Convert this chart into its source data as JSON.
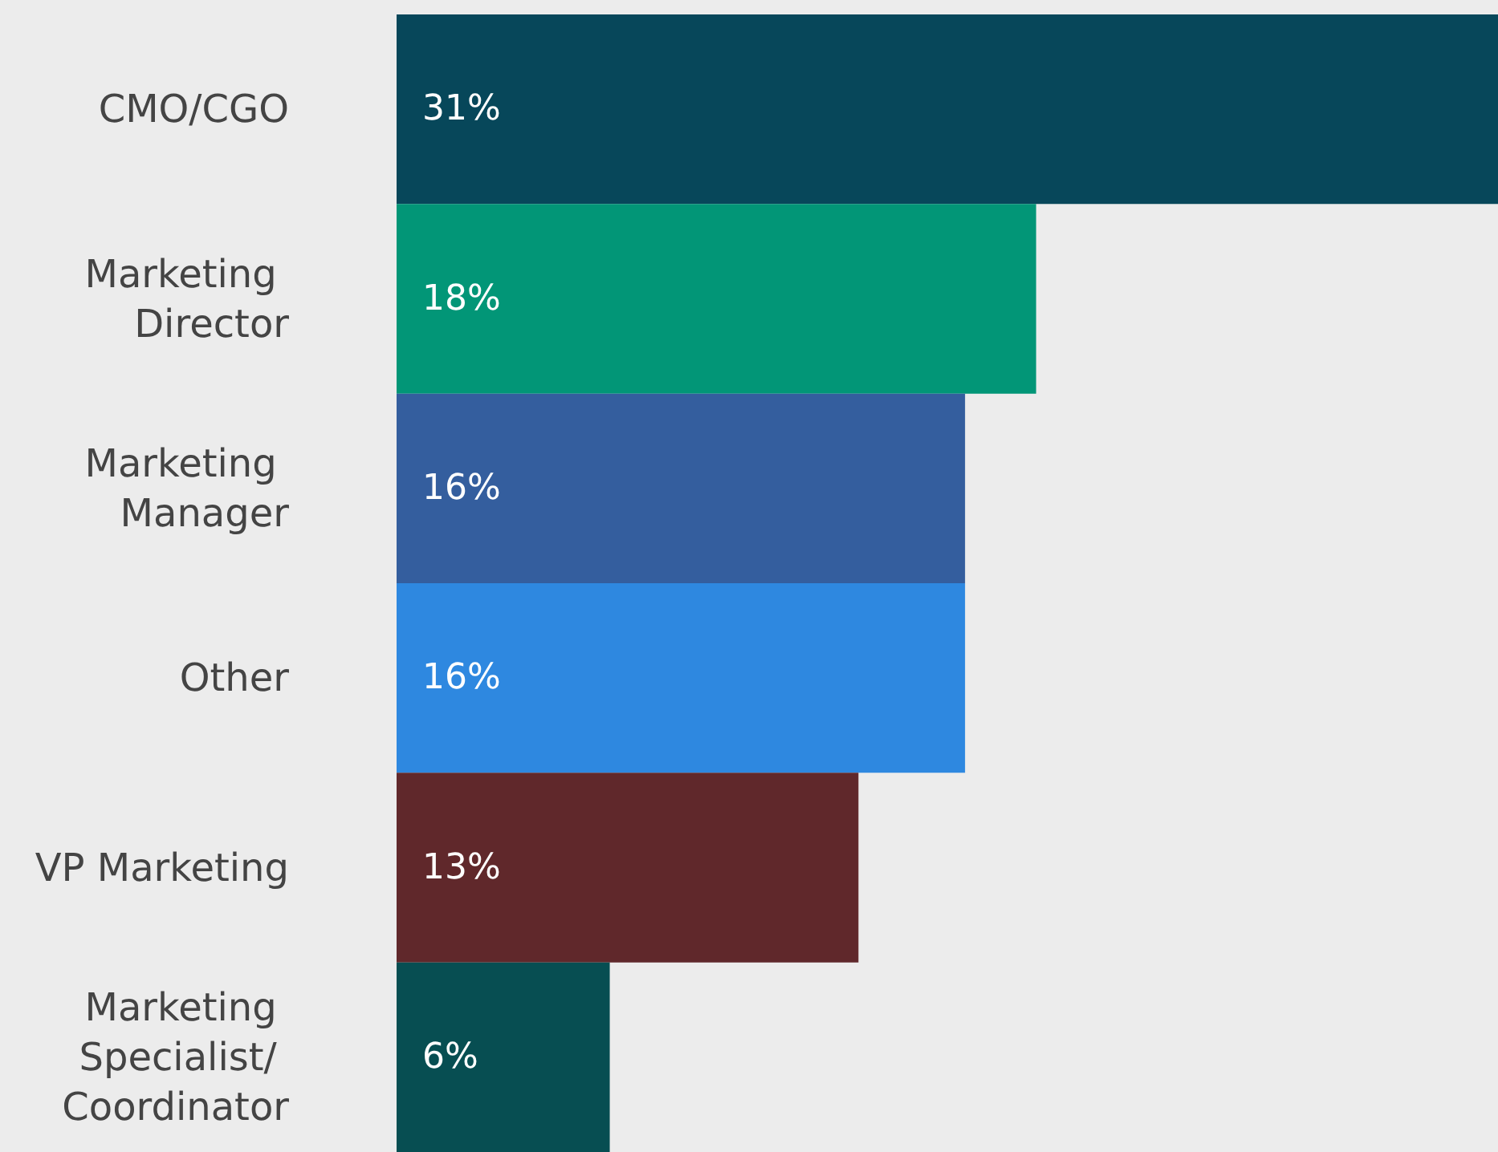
{
  "chart_data": {
    "type": "bar",
    "orientation": "horizontal",
    "categories": [
      "CMO/CGO",
      "Marketing Director",
      "Marketing Manager",
      "Other",
      "VP Marketing",
      "Marketing Specialist/ Coordinator"
    ],
    "values": [
      31,
      18,
      16,
      16,
      13,
      6
    ],
    "colors": [
      "#07475a",
      "#029677",
      "#345e9e",
      "#2e88e0",
      "#60282b",
      "#074e52"
    ],
    "value_labels": [
      "31%",
      "18%",
      "16%",
      "16%",
      "13%",
      "6%"
    ]
  }
}
